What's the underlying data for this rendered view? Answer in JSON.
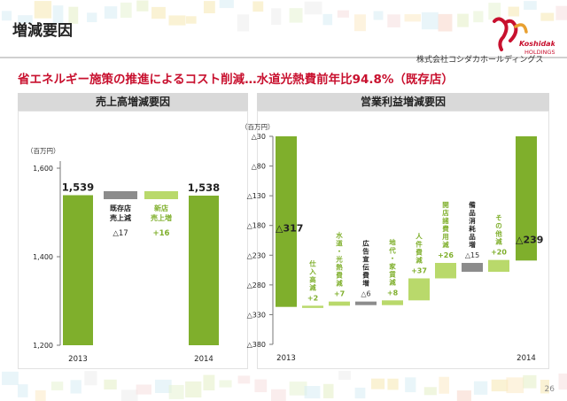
{
  "title": "増減要因",
  "company": "株式会社コシダカホールディングス",
  "logo_text": "Koshidaka HOLDINGS",
  "headline": "省エネルギー施策の推進によるコスト削減…水道光熱費前年比94.8%（既存店）",
  "page_number": "26",
  "colors": {
    "green": "#7faf2c",
    "light_green": "#b9d96b",
    "gray": "#8c8c8c",
    "red": "#c8102e"
  },
  "chart_data": [
    {
      "type": "bar",
      "panel_title": "売上高増減要因",
      "unit_label": "（百万円）",
      "y_ticks": [
        "1,600",
        "1,400",
        "1,200"
      ],
      "ylim": [
        1200,
        1650
      ],
      "x_labels": [
        "2013",
        "2014"
      ],
      "bars": [
        {
          "label": "2013",
          "value": 1539,
          "display": "1,539"
        },
        {
          "label": "2014",
          "value": 1538,
          "display": "1,538"
        }
      ],
      "legend": [
        {
          "lines": [
            "既存店",
            "売上減"
          ],
          "value": "△17",
          "color": "gray"
        },
        {
          "lines": [
            "新店",
            "売上増"
          ],
          "value": "+16",
          "color": "light_green"
        }
      ]
    },
    {
      "type": "bar",
      "panel_title": "営業利益増減要因",
      "unit_label": "（百万円）",
      "y_ticks": [
        "△30",
        "△80",
        "△130",
        "△180",
        "△230",
        "△280",
        "△330",
        "△380"
      ],
      "ylim": [
        -380,
        -30
      ],
      "x_labels": [
        "2013",
        "2014"
      ],
      "start": {
        "value": -317,
        "display": "△317"
      },
      "end": {
        "value": -239,
        "display": "△239"
      },
      "steps": [
        {
          "label": "仕入高減",
          "value": 2,
          "display": "+2",
          "color": "light_green"
        },
        {
          "label": "水道・光熱費減",
          "value": 7,
          "display": "+7",
          "color": "light_green"
        },
        {
          "label": "広告宣伝費増",
          "value": -6,
          "display": "△6",
          "color": "gray"
        },
        {
          "label": "地代・家賃減",
          "value": 8,
          "display": "+8",
          "color": "light_green"
        },
        {
          "label": "人件費減",
          "value": 37,
          "display": "+37",
          "color": "light_green"
        },
        {
          "label": "開店諸費用減",
          "value": 26,
          "display": "+26",
          "color": "light_green"
        },
        {
          "label": "備品消耗品増",
          "value": -15,
          "display": "△15",
          "color": "gray"
        },
        {
          "label": "その他減",
          "value": 20,
          "display": "+20",
          "color": "light_green"
        }
      ]
    }
  ]
}
